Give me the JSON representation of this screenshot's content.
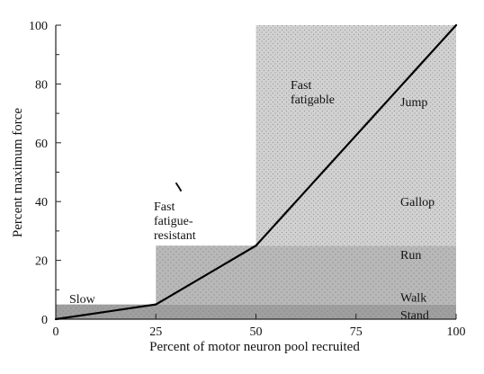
{
  "chart_data": {
    "type": "line",
    "title": "",
    "xlabel": "Percent of motor neuron pool recruited",
    "ylabel": "Percent maximum force",
    "xlim": [
      0,
      100
    ],
    "ylim": [
      0,
      100
    ],
    "x_ticks": [
      0,
      25,
      50,
      75,
      100
    ],
    "y_ticks": [
      0,
      20,
      40,
      60,
      80,
      100
    ],
    "grid": false,
    "legend": "none",
    "series": [
      {
        "points": [
          {
            "x": 0,
            "y": 0
          },
          {
            "x": 25,
            "y": 5
          },
          {
            "x": 50,
            "y": 25
          },
          {
            "x": 100,
            "y": 100
          }
        ]
      }
    ],
    "regions": [
      {
        "id": "slow",
        "label_lines": [
          "Slow"
        ],
        "x_range": [
          0,
          100
        ],
        "y_range": [
          0,
          5
        ]
      },
      {
        "id": "fast-fatigue-resistant",
        "label_lines": [
          "Fast",
          "fatigue-",
          "resistant"
        ],
        "x_range": [
          25,
          100
        ],
        "y_range": [
          5,
          25
        ]
      },
      {
        "id": "fast-fatigable",
        "label_lines": [
          "Fast",
          "fatigable"
        ],
        "x_range": [
          50,
          100
        ],
        "y_range": [
          25,
          100
        ]
      }
    ],
    "activities": [
      {
        "label": "Jump",
        "y": 74
      },
      {
        "label": "Gallop",
        "y": 40
      },
      {
        "label": "Run",
        "y": 22
      },
      {
        "label": "Walk",
        "y": 7.5
      },
      {
        "label": "Stand",
        "y": 1.5
      }
    ],
    "colors": {
      "curve": "#000000",
      "axis": "#222222",
      "slow_band": "#9f9f9f",
      "fatigue_resistant_band": "#b8b8b8",
      "fatigable_band": "#d1d1d1",
      "pattern_dots": "#6e6e6e"
    }
  }
}
